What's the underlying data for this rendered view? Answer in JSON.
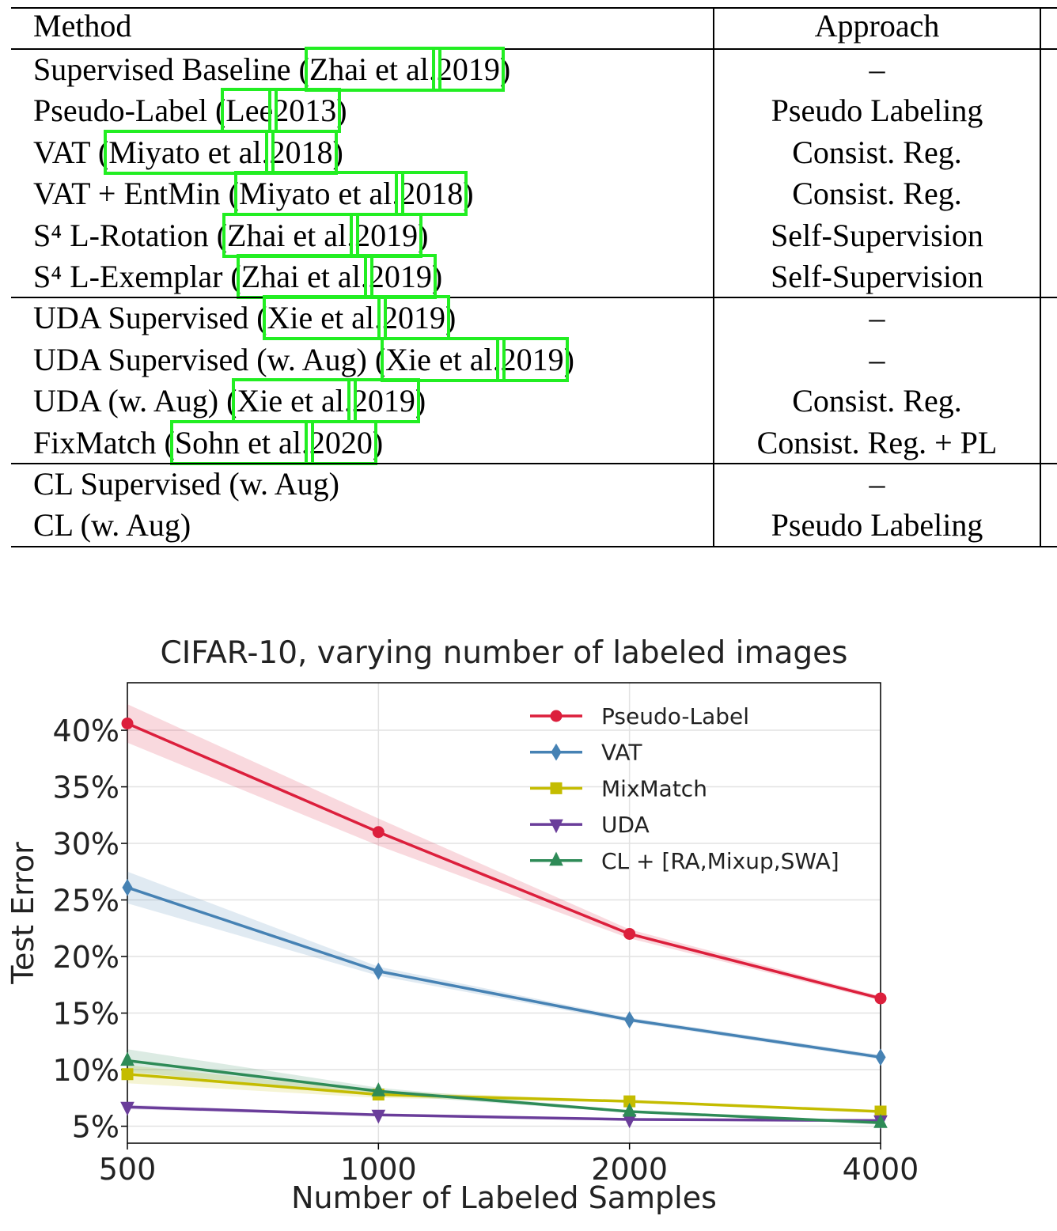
{
  "table": {
    "header": [
      "Method",
      "Approach"
    ],
    "groups": [
      [
        {
          "method": "Supervised Baseline (",
          "cite": "Zhai et al.",
          "year": "2019",
          "close": ")",
          "approach": "–"
        },
        {
          "method": "Pseudo-Label (",
          "cite": "Lee",
          "year": "2013",
          "close": ")",
          "approach": "Pseudo Labeling"
        },
        {
          "method": "VAT (",
          "cite": "Miyato et al.",
          "year": "2018",
          "close": ")",
          "approach": "Consist. Reg."
        },
        {
          "method": "VAT + EntMin (",
          "cite": "Miyato et al.",
          "year": "2018",
          "close": ")",
          "approach": "Consist. Reg."
        },
        {
          "method": "S⁴ L-Rotation (",
          "cite": "Zhai et al.",
          "year": "2019",
          "close": ")",
          "approach": "Self-Supervision"
        },
        {
          "method": "S⁴ L-Exemplar (",
          "cite": "Zhai et al.",
          "year": "2019",
          "close": ")",
          "approach": "Self-Supervision"
        }
      ],
      [
        {
          "method": "UDA Supervised (",
          "cite": "Xie et al.",
          "year": "2019",
          "close": ")",
          "approach": "–"
        },
        {
          "method": "UDA Supervised (w. Aug) (",
          "cite": "Xie et al.",
          "year": "2019",
          "close": ")",
          "approach": "–"
        },
        {
          "method": "UDA (w. Aug) (",
          "cite": "Xie et al.",
          "year": "2019",
          "close": ")",
          "approach": "Consist. Reg."
        },
        {
          "method": "FixMatch (",
          "cite": "Sohn et al.",
          "year": "2020",
          "close": ")",
          "approach": "Consist. Reg. + PL"
        }
      ],
      [
        {
          "method": "CL Supervised (w. Aug)",
          "approach": "–"
        },
        {
          "method": "CL (w. Aug)",
          "approach": "Pseudo Labeling"
        }
      ]
    ]
  },
  "chart_data": {
    "type": "line",
    "title": "CIFAR-10, varying number of labeled images",
    "x_label": "Number of Labeled Samples",
    "y_label": "Test Error",
    "categories": [
      "500",
      "1000",
      "2000",
      "4000"
    ],
    "ylim": [
      3.5,
      44.2
    ],
    "yticks": [
      {
        "value": 5,
        "label": "5%"
      },
      {
        "value": 10,
        "label": "10%"
      },
      {
        "value": 15,
        "label": "15%"
      },
      {
        "value": 20,
        "label": "20%"
      },
      {
        "value": 25,
        "label": "25%"
      },
      {
        "value": 30,
        "label": "30%"
      },
      {
        "value": 35,
        "label": "35%"
      },
      {
        "value": 40,
        "label": "40%"
      }
    ],
    "grid": true,
    "series": [
      {
        "name": "Pseudo-Label",
        "color": "#dc1f3c",
        "marker": "circle",
        "values": [
          40.6,
          31.0,
          22.0,
          16.3
        ],
        "errors": [
          1.7,
          1.2,
          0.4,
          0.2
        ]
      },
      {
        "name": "VAT",
        "color": "#4682b4",
        "marker": "diamond",
        "values": [
          26.1,
          18.7,
          14.4,
          11.1
        ],
        "errors": [
          1.4,
          0.4,
          0.2,
          0.2
        ]
      },
      {
        "name": "MixMatch",
        "color": "#c4bc00",
        "marker": "square",
        "values": [
          9.6,
          7.8,
          7.2,
          6.3
        ],
        "errors": [
          0.8,
          0.3,
          0.1,
          0.1
        ]
      },
      {
        "name": "UDA",
        "color": "#6a3d9a",
        "marker": "down",
        "values": [
          6.7,
          6.0,
          5.6,
          5.5
        ],
        "errors": [
          0.2,
          0.1,
          0.1,
          0.1
        ]
      },
      {
        "name": "CL + [RA,Mixup,SWA]",
        "color": "#2e8b57",
        "marker": "up",
        "values": [
          10.8,
          8.1,
          6.3,
          5.3
        ],
        "errors": [
          1.0,
          0.3,
          0.1,
          0.1
        ]
      }
    ]
  }
}
